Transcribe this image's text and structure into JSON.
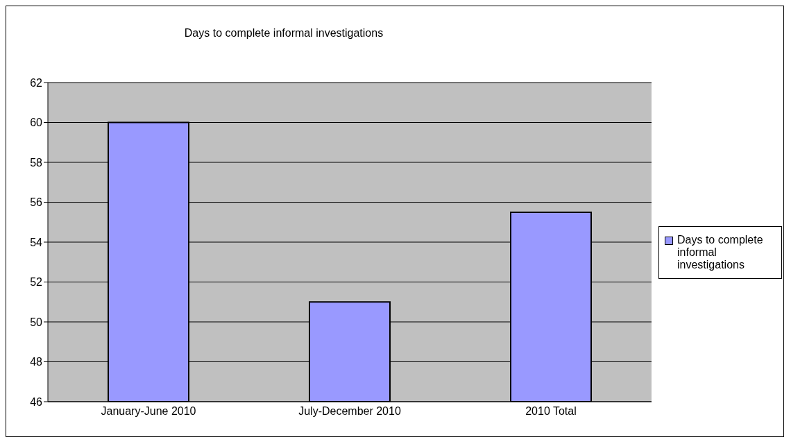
{
  "chart_data": {
    "type": "bar",
    "title": "Days to complete informal investigations",
    "categories": [
      "January-June 2010",
      "July-December 2010",
      "2010 Total"
    ],
    "series": [
      {
        "name": "Days to complete informal investigations",
        "color": "#9999ff",
        "values": [
          60,
          51,
          55.5
        ]
      }
    ],
    "ylim": [
      46,
      62
    ],
    "yticks": [
      46,
      48,
      50,
      52,
      54,
      56,
      58,
      60,
      62
    ],
    "grid": "y",
    "legend": "right"
  }
}
